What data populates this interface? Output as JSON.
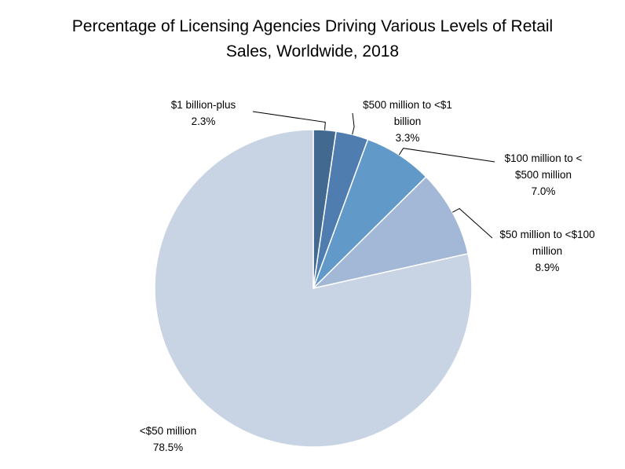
{
  "chart_data": {
    "type": "pie",
    "title_lines": [
      "Percentage of Licensing Agencies Driving Various Levels of Retail",
      "Sales, Worldwide, 2018"
    ],
    "slices": [
      {
        "label_lines": [
          "$1 billion-plus"
        ],
        "value": 2.3,
        "value_label": "2.3%",
        "color": "#42698f"
      },
      {
        "label_lines": [
          "$500 million to <$1",
          "billion"
        ],
        "value": 3.3,
        "value_label": "3.3%",
        "color": "#4f7daf"
      },
      {
        "label_lines": [
          "$100 million to <",
          "$500 million"
        ],
        "value": 7.0,
        "value_label": "7.0%",
        "color": "#6199c9"
      },
      {
        "label_lines": [
          "$50 million to <$100",
          "million"
        ],
        "value": 8.9,
        "value_label": "8.9%",
        "color": "#a3b7d6"
      },
      {
        "label_lines": [
          "<$50 million"
        ],
        "value": 78.5,
        "value_label": "78.5%",
        "color": "#c8d3e4"
      }
    ],
    "start_angle_deg": 0,
    "direction": "clockwise",
    "legend": "none",
    "label_style": "outside with leader lines"
  }
}
